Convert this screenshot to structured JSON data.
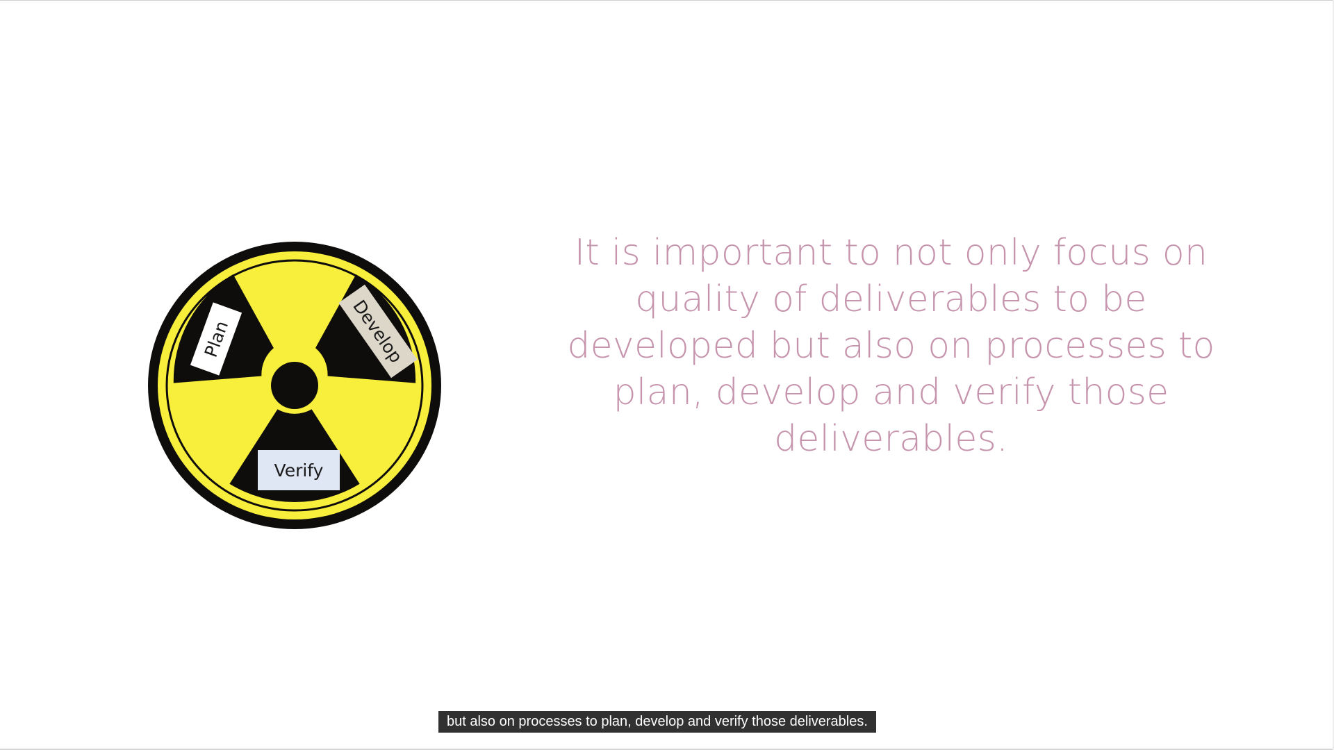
{
  "slide": {
    "symbol": {
      "icon": "radiation-symbol-icon",
      "labels": {
        "plan": "Plan",
        "develop": "Develop",
        "verify": "Verify"
      },
      "colors": {
        "yellow": "#f7ef3c",
        "black": "#0f0d0c",
        "plan_card": "#ffffff",
        "develop_card": "#dcd7c9",
        "verify_card": "#dfe6f4"
      }
    },
    "text": "It is important to not only focus on quality of deliverables to be developed but also on processes to plan, develop and verify those deliverables.",
    "text_color": "#c694ad"
  },
  "caption": {
    "text": "but also on processes to plan, develop and verify those deliverables."
  }
}
